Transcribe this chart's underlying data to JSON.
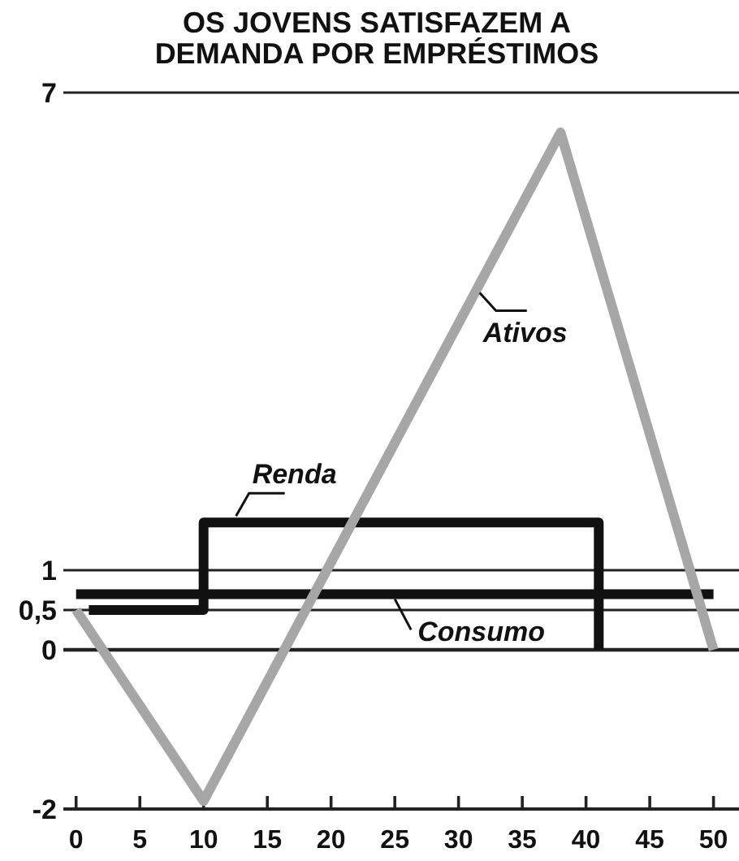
{
  "chart_data": {
    "type": "line",
    "title": "OS JOVENS SATISFAZEM A DEMANDA POR EMPRÉSTIMOS",
    "xlim": [
      -1,
      52
    ],
    "xticks": [
      0,
      5,
      10,
      15,
      20,
      25,
      30,
      35,
      40,
      45,
      50
    ],
    "ylim": [
      -2,
      7
    ],
    "yticks": [
      -2,
      0,
      {
        "value": 0.5,
        "label": "0,5"
      },
      1,
      7
    ],
    "grid": "y",
    "series": [
      {
        "name": "Renda",
        "color": "#111111",
        "x": [
          1,
          10,
          10,
          41,
          41
        ],
        "values": [
          0.5,
          0.5,
          1.6,
          1.6,
          0
        ]
      },
      {
        "name": "Consumo",
        "color": "#111111",
        "x": [
          0,
          50
        ],
        "values": [
          0.7,
          0.7
        ]
      },
      {
        "name": "Ativos",
        "color": "#a6a6a6",
        "x": [
          0,
          10,
          38,
          50
        ],
        "values": [
          0.5,
          -1.9,
          6.5,
          0
        ]
      }
    ]
  }
}
